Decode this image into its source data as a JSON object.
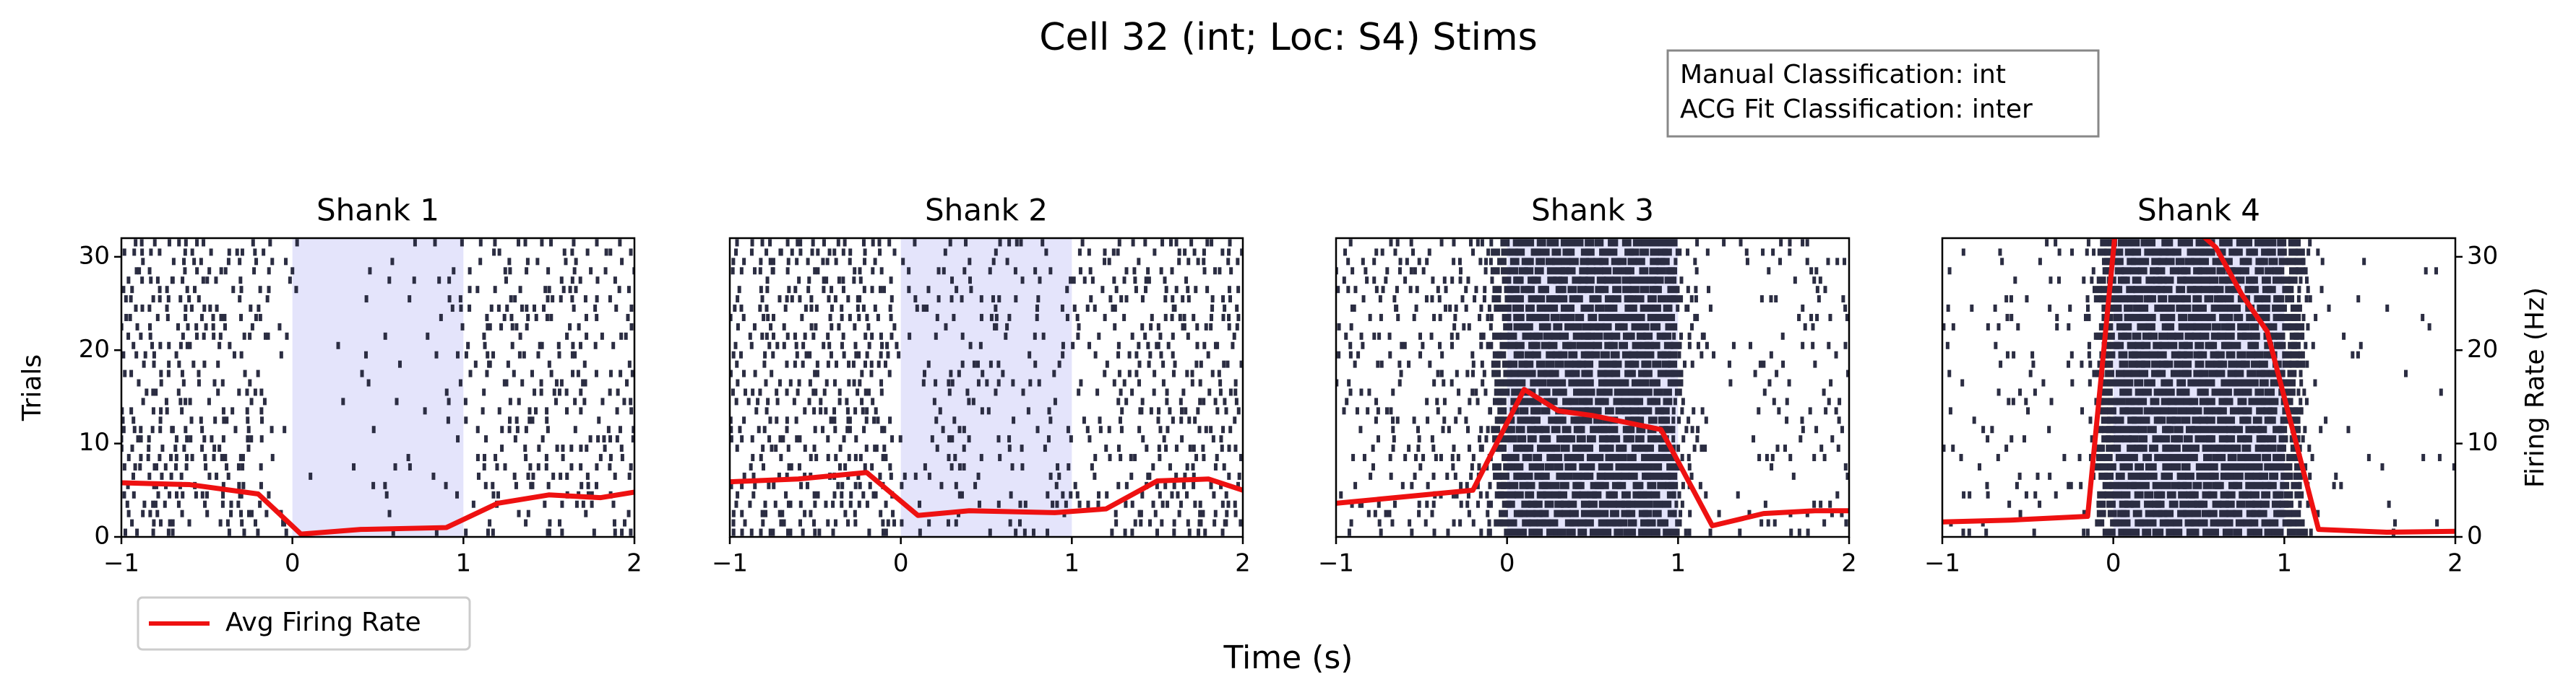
{
  "title": "Cell 32 (int; Loc: S4) Stims",
  "annotation": [
    "Manual Classification: int",
    "ACG Fit Classification: inter"
  ],
  "xlabel": "Time (s)",
  "chart_data": [
    {
      "type": "line",
      "title": "Shank 1",
      "ylabel": "Trials",
      "x": [
        -1,
        -0.6,
        -0.2,
        0.05,
        0.4,
        0.9,
        1.2,
        1.5,
        1.8,
        2
      ],
      "series": [
        {
          "name": "Avg Firing Rate",
          "color": "#ee1111",
          "axis": "y2",
          "values": [
            5.8,
            5.6,
            4.6,
            0.3,
            0.8,
            1,
            3.6,
            4.5,
            4.2,
            4.8
          ]
        }
      ],
      "shaded_span": [
        0,
        1
      ],
      "shade_color": "#e4e4fb",
      "raster_color": "#2b2d42",
      "xlim": [
        -1,
        2
      ],
      "xticks": [
        {
          "value": -1,
          "label": "−1"
        },
        0,
        1,
        2
      ],
      "ylim": [
        0,
        32
      ],
      "yticks": [
        0,
        10,
        20,
        30
      ],
      "y2lim": [
        0,
        32
      ]
    },
    {
      "type": "line",
      "title": "Shank 2",
      "x": [
        -1,
        -0.6,
        -0.2,
        0.1,
        0.4,
        0.9,
        1.2,
        1.5,
        1.8,
        2
      ],
      "series": [
        {
          "name": "Avg Firing Rate",
          "color": "#ee1111",
          "axis": "y2",
          "values": [
            5.9,
            6.2,
            6.9,
            2.3,
            2.8,
            2.6,
            3,
            6,
            6.2,
            5
          ]
        }
      ],
      "shaded_span": [
        0,
        1
      ],
      "shade_color": "#e4e4fb",
      "raster_color": "#2b2d42",
      "xlim": [
        -1,
        2
      ],
      "xticks": [
        {
          "value": -1,
          "label": "−1"
        },
        0,
        1,
        2
      ],
      "ylim": [
        0,
        32
      ],
      "y2lim": [
        0,
        32
      ]
    },
    {
      "type": "line",
      "title": "Shank 3",
      "x": [
        -1,
        -0.2,
        0.1,
        0.3,
        0.5,
        0.9,
        1.2,
        1.5,
        1.8,
        2
      ],
      "series": [
        {
          "name": "Avg Firing Rate",
          "color": "#ee1111",
          "axis": "y2",
          "values": [
            3.6,
            5,
            15.8,
            13.5,
            13,
            11.5,
            1.2,
            2.5,
            2.8,
            2.8
          ]
        }
      ],
      "shaded_span": [
        0,
        1
      ],
      "shade_color": "#e4e4fb",
      "raster_color": "#2b2d42",
      "xlim": [
        -1,
        2
      ],
      "xticks": [
        {
          "value": -1,
          "label": "−1"
        },
        0,
        1,
        2
      ],
      "ylim": [
        0,
        32
      ],
      "y2lim": [
        0,
        32
      ]
    },
    {
      "type": "line",
      "title": "Shank 4",
      "y2label": "Firing Rate (Hz)",
      "x": [
        -1,
        -0.6,
        -0.15,
        0.05,
        0.6,
        0.75,
        0.9,
        1.2,
        1.6,
        2
      ],
      "series": [
        {
          "name": "Avg Firing Rate",
          "color": "#ee1111",
          "axis": "y2",
          "values": [
            1.6,
            1.8,
            2.2,
            40,
            31,
            26,
            22,
            0.8,
            0.5,
            0.6
          ]
        }
      ],
      "shaded_span": [
        0,
        1
      ],
      "shade_color": "#e4e4fb",
      "raster_color": "#2b2d42",
      "xlim": [
        -1,
        2
      ],
      "xticks": [
        {
          "value": -1,
          "label": "−1"
        },
        0,
        1,
        2
      ],
      "ylim": [
        0,
        32
      ],
      "y2lim": [
        0,
        32
      ],
      "y2ticks": [
        0,
        10,
        20,
        30
      ]
    }
  ]
}
